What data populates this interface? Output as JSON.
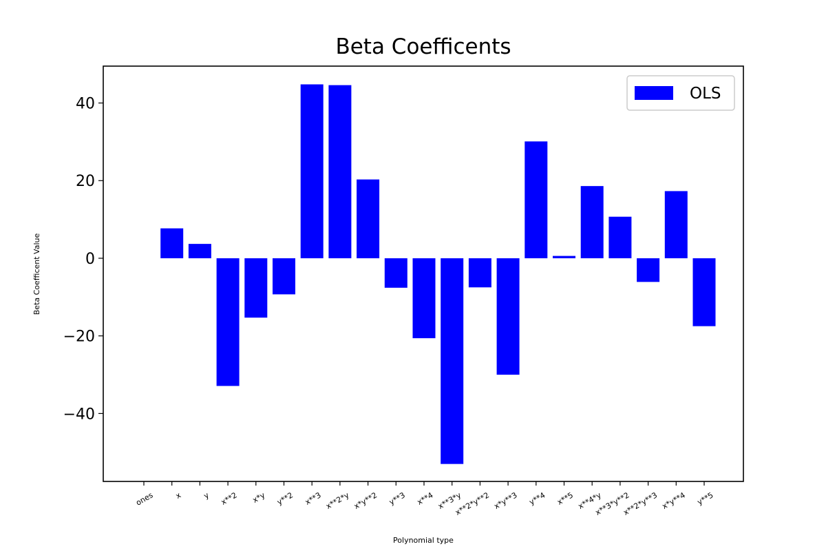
{
  "chart_data": {
    "type": "bar",
    "title": "Beta Coefficents",
    "xlabel": "Polynomial type",
    "ylabel": "Beta Coefficent Value",
    "ylim": [
      -57.5,
      49.5
    ],
    "yticks": [
      40,
      20,
      0,
      -20,
      -40
    ],
    "ytick_labels": [
      "40",
      "20",
      "0",
      "−20",
      "−40"
    ],
    "grid": false,
    "legend_position": "top-right",
    "bar_color": "#0000ff",
    "categories": [
      "ones",
      "x",
      "y",
      "x**2",
      "x*y",
      "y**2",
      "x**3",
      "x**2*y",
      "x*y**2",
      "y**3",
      "x**4",
      "x**3*y",
      "x**2*y**2",
      "x*y**3",
      "y**4",
      "x**5",
      "x**4*y",
      "x**3*y**2",
      "x**2*y**3",
      "x*y**4",
      "y**5"
    ],
    "series": [
      {
        "name": "OLS",
        "values": [
          0,
          7.7,
          3.7,
          -32.9,
          -15.3,
          -9.3,
          44.8,
          44.6,
          20.3,
          -7.6,
          -20.6,
          -53.0,
          -7.5,
          -30.0,
          30.1,
          0.6,
          18.6,
          10.7,
          -6.1,
          17.3,
          -17.5
        ]
      }
    ]
  }
}
